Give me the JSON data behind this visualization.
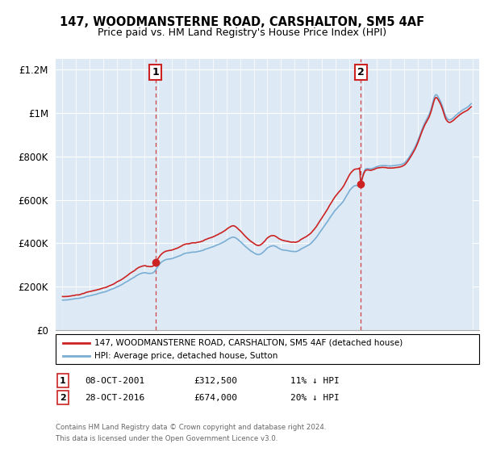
{
  "title1": "147, WOODMANSTERNE ROAD, CARSHALTON, SM5 4AF",
  "title2": "Price paid vs. HM Land Registry's House Price Index (HPI)",
  "legend_line1": "147, WOODMANSTERNE ROAD, CARSHALTON, SM5 4AF (detached house)",
  "legend_line2": "HPI: Average price, detached house, Sutton",
  "marker1_label": "1",
  "marker1_date": "08-OCT-2001",
  "marker1_price": "£312,500",
  "marker1_hpi": "11% ↓ HPI",
  "marker1_year": 2001.8,
  "marker1_value": 312500,
  "marker2_label": "2",
  "marker2_date": "28-OCT-2016",
  "marker2_price": "£674,000",
  "marker2_hpi": "20% ↓ HPI",
  "marker2_year": 2016.83,
  "marker2_value": 674000,
  "footer1": "Contains HM Land Registry data © Crown copyright and database right 2024.",
  "footer2": "This data is licensed under the Open Government Licence v3.0.",
  "hpi_color": "#7aadd4",
  "hpi_fill_color": "#ddeaf5",
  "price_color": "#cc2222",
  "marker_color": "#cc2222",
  "ylim_min": 0,
  "ylim_max": 1250000,
  "xmin": 1994.5,
  "xmax": 2025.5
}
